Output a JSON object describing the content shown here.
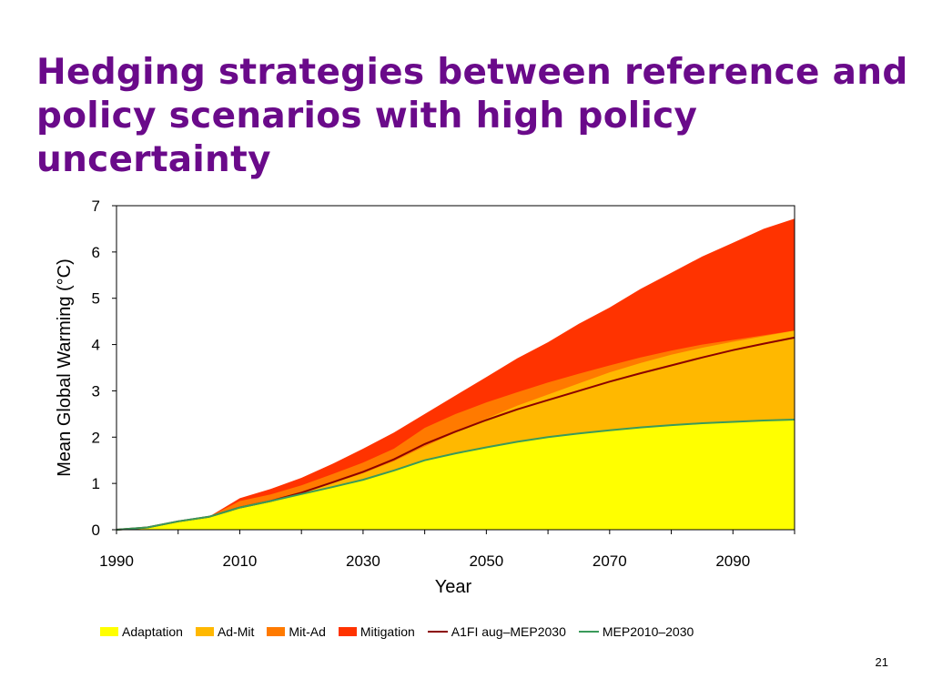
{
  "slide": {
    "title": "Hedging strategies between reference and policy scenarios with high policy uncertainty",
    "page_number": "21"
  },
  "chart_data": {
    "type": "area",
    "xlabel": "Year",
    "ylabel": "Mean Global Warming (°C)",
    "xlim": [
      1990,
      2100
    ],
    "ylim": [
      0,
      7
    ],
    "x_ticks": [
      "1990",
      "2010",
      "2030",
      "2050",
      "2070",
      "2090"
    ],
    "y_ticks": [
      "0",
      "1",
      "2",
      "3",
      "4",
      "5",
      "6",
      "7"
    ],
    "grid": false,
    "legend_position": "bottom",
    "x": [
      1990,
      1995,
      2000,
      2005,
      2010,
      2015,
      2020,
      2025,
      2030,
      2035,
      2040,
      2045,
      2050,
      2055,
      2060,
      2065,
      2070,
      2075,
      2080,
      2085,
      2090,
      2095,
      2100
    ],
    "series": [
      {
        "name": "Adaptation",
        "kind": "area",
        "color": "#ffff00",
        "values": [
          0,
          0.05,
          0.18,
          0.28,
          0.48,
          0.62,
          0.77,
          0.92,
          1.08,
          1.28,
          1.5,
          1.65,
          1.78,
          1.9,
          2.0,
          2.08,
          2.15,
          2.21,
          2.26,
          2.3,
          2.33,
          2.36,
          2.38
        ]
      },
      {
        "name": "Ad-Mit",
        "kind": "area",
        "color": "#ffb800",
        "values": [
          0,
          0.05,
          0.18,
          0.28,
          0.48,
          0.62,
          0.8,
          1.0,
          1.22,
          1.48,
          1.8,
          2.1,
          2.4,
          2.68,
          2.92,
          3.16,
          3.4,
          3.6,
          3.78,
          3.93,
          4.06,
          4.18,
          4.3
        ]
      },
      {
        "name": "Mit-Ad",
        "kind": "area",
        "color": "#ff7a00",
        "values": [
          0,
          0.05,
          0.18,
          0.28,
          0.62,
          0.76,
          0.96,
          1.2,
          1.45,
          1.75,
          2.2,
          2.5,
          2.75,
          2.97,
          3.18,
          3.37,
          3.55,
          3.72,
          3.87,
          4.0,
          4.1,
          4.2,
          4.3
        ]
      },
      {
        "name": "Mitigation",
        "kind": "area",
        "color": "#ff3300",
        "values": [
          0,
          0.05,
          0.18,
          0.28,
          0.68,
          0.88,
          1.12,
          1.42,
          1.75,
          2.1,
          2.5,
          2.9,
          3.3,
          3.7,
          4.05,
          4.45,
          4.8,
          5.2,
          5.55,
          5.9,
          6.2,
          6.5,
          6.72
        ]
      },
      {
        "name": "A1FI aug–MEP2030",
        "kind": "line",
        "color": "#8b0000",
        "values": [
          0,
          0.05,
          0.18,
          0.28,
          0.48,
          0.62,
          0.8,
          1.02,
          1.25,
          1.52,
          1.85,
          2.12,
          2.37,
          2.6,
          2.8,
          3.0,
          3.2,
          3.38,
          3.55,
          3.72,
          3.88,
          4.02,
          4.15
        ]
      },
      {
        "name": "MEP2010–2030",
        "kind": "line",
        "color": "#3a9a5a",
        "values": [
          0,
          0.05,
          0.18,
          0.28,
          0.48,
          0.62,
          0.77,
          0.92,
          1.08,
          1.28,
          1.5,
          1.65,
          1.78,
          1.9,
          2.0,
          2.08,
          2.15,
          2.21,
          2.26,
          2.3,
          2.33,
          2.36,
          2.38
        ]
      }
    ]
  }
}
